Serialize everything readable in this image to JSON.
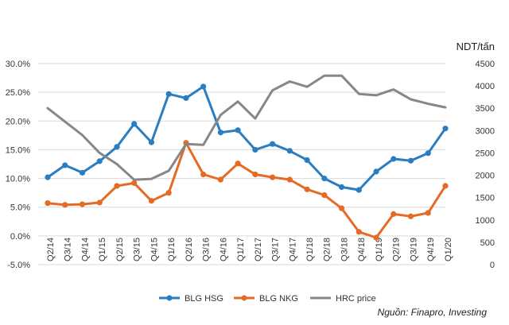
{
  "chart_data": {
    "type": "line",
    "title": "",
    "categories": [
      "Q2/14",
      "Q3/14",
      "Q4/14",
      "Q1/15",
      "Q2/15",
      "Q3/15",
      "Q4/15",
      "Q1/16",
      "Q2/16",
      "Q3/16",
      "Q4/16",
      "Q1/17",
      "Q2/17",
      "Q3/17",
      "Q4/17",
      "Q1/18",
      "Q2/18",
      "Q3/18",
      "Q4/18",
      "Q1/19",
      "Q2/19",
      "Q3/19",
      "Q4/19",
      "Q1/20"
    ],
    "left_axis": {
      "ticks": [
        "-5.0%",
        "0.0%",
        "5.0%",
        "10.0%",
        "15.0%",
        "20.0%",
        "25.0%",
        "30.0%"
      ],
      "min": -5,
      "max": 30,
      "step": 5
    },
    "right_axis": {
      "label": "NDT/tấn",
      "ticks": [
        "0",
        "500",
        "1000",
        "1500",
        "2000",
        "2500",
        "3000",
        "3500",
        "4000",
        "4500"
      ],
      "min": 0,
      "max": 4500,
      "step": 500
    },
    "grid": true,
    "series": [
      {
        "name": "BLG HSG",
        "axis": "left",
        "color": "#2a7dc0",
        "markers": true,
        "values": [
          10.2,
          12.3,
          11.0,
          13.0,
          15.5,
          19.5,
          16.3,
          24.7,
          24.0,
          26.0,
          18.0,
          18.4,
          15.0,
          16.0,
          14.8,
          13.2,
          10.0,
          8.5,
          8.0,
          11.2,
          13.4,
          13.1,
          14.4,
          18.7
        ]
      },
      {
        "name": "BLG NKG",
        "axis": "left",
        "color": "#e56b25",
        "markers": true,
        "values": [
          5.7,
          5.4,
          5.5,
          5.8,
          8.7,
          9.2,
          6.1,
          7.5,
          16.2,
          10.7,
          9.8,
          12.6,
          10.7,
          10.2,
          9.8,
          8.1,
          7.1,
          4.8,
          0.7,
          -0.3,
          3.8,
          3.4,
          4.0,
          8.7
        ]
      },
      {
        "name": "HRC price",
        "axis": "right",
        "color": "#878787",
        "markers": false,
        "values": [
          3500,
          3200,
          2900,
          2500,
          2250,
          1900,
          1920,
          2100,
          2700,
          2680,
          3350,
          3650,
          3270,
          3900,
          4100,
          3980,
          4230,
          4230,
          3820,
          3790,
          3920,
          3700,
          3600,
          3520
        ]
      }
    ],
    "legend_position": "bottom"
  },
  "source_note": "Nguồn: Finapro, Investing"
}
